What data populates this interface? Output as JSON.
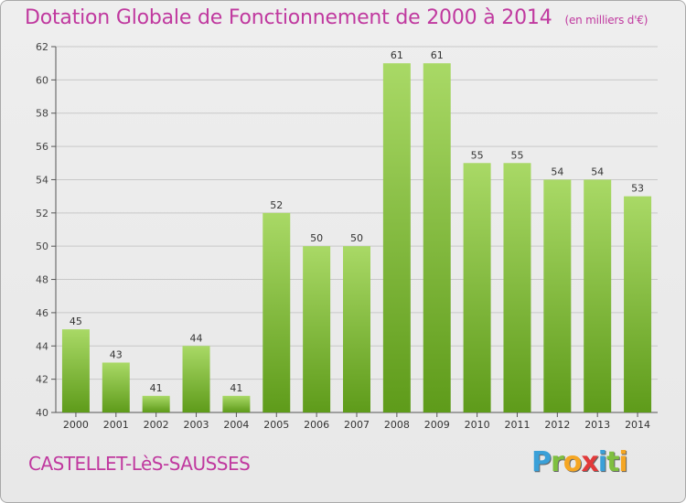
{
  "header": {
    "title": "Dotation Globale de Fonctionnement de 2000 à 2014",
    "subtitle": "(en milliers d'€)"
  },
  "footer": {
    "commune": "CASTELLET-LèS-SAUSSES",
    "logo_text": "Proxiti",
    "logo_letters": [
      {
        "char": "P",
        "color": "#3aa0d8"
      },
      {
        "char": "r",
        "color": "#7fbf3f"
      },
      {
        "char": "o",
        "color": "#f5a623"
      },
      {
        "char": "x",
        "color": "#e23a3a"
      },
      {
        "char": "i",
        "color": "#3aa0d8"
      },
      {
        "char": "t",
        "color": "#7fbf3f"
      },
      {
        "char": "i",
        "color": "#f5a623"
      }
    ]
  },
  "colors": {
    "bar_light": "#a9d966",
    "bar_dark": "#5e9b1a",
    "axis": "#555555",
    "grid": "#c8c8c8",
    "title": "#c0399f"
  },
  "chart_data": {
    "type": "bar",
    "categories": [
      "2000",
      "2001",
      "2002",
      "2003",
      "2004",
      "2005",
      "2006",
      "2007",
      "2008",
      "2009",
      "2010",
      "2011",
      "2012",
      "2013",
      "2014"
    ],
    "values": [
      45,
      43,
      41,
      44,
      41,
      52,
      50,
      50,
      61,
      61,
      55,
      55,
      54,
      54,
      53
    ],
    "data_labels": [
      "45",
      "43",
      "41",
      "44",
      "41",
      "52",
      "50",
      "50",
      "61",
      "61",
      "55",
      "55",
      "54",
      "54",
      "53"
    ],
    "title": "Dotation Globale de Fonctionnement de 2000 à 2014",
    "subtitle": "(en milliers d'€)",
    "xlabel": "",
    "ylabel": "",
    "ylim": [
      40,
      62
    ],
    "yticks": [
      40,
      42,
      44,
      46,
      48,
      50,
      52,
      54,
      56,
      58,
      60,
      62
    ],
    "grid": true,
    "legend": "none"
  }
}
